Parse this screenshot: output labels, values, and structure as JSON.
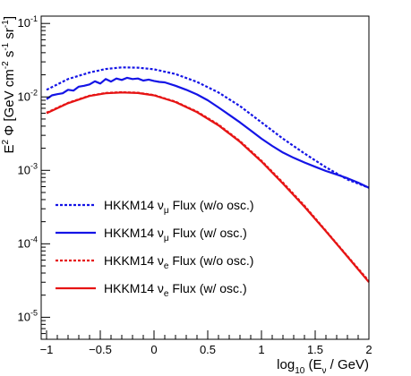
{
  "chart_data": {
    "type": "line",
    "title": "",
    "xlabel": {
      "main": "log",
      "sub": "10",
      "arg_open": " (E",
      "arg_sub": "ν",
      "arg_close": " / GeV)"
    },
    "ylabel": {
      "a": "E",
      "sup1": "2",
      "b": " Φ [GeV cm",
      "sup2": "-2",
      "c": " s",
      "sup3": "-1",
      "d": " sr",
      "sup4": "-1",
      "e": "]"
    },
    "xlim": [
      -1.05,
      2.0
    ],
    "ylim_log10": [
      -5.3,
      -0.9
    ],
    "y_log_scale": true,
    "grid": false,
    "legend_position": "bottom-left",
    "x_ticks": [
      {
        "value": -1,
        "label": "−1"
      },
      {
        "value": -0.5,
        "label": "−0.5"
      },
      {
        "value": 0,
        "label": "0"
      },
      {
        "value": 0.5,
        "label": "0.5"
      },
      {
        "value": 1,
        "label": "1"
      },
      {
        "value": 1.5,
        "label": "1.5"
      },
      {
        "value": 2,
        "label": "2"
      }
    ],
    "y_ticks": [
      {
        "exp": -5,
        "base": "10",
        "sup": "-5"
      },
      {
        "exp": -4,
        "base": "10",
        "sup": "-4"
      },
      {
        "exp": -3,
        "base": "10",
        "sup": "-3"
      },
      {
        "exp": -2,
        "base": "10",
        "sup": "-2"
      },
      {
        "exp": -1,
        "base": "10",
        "sup": "-1"
      }
    ],
    "series": [
      {
        "name": {
          "pre": "HKKM14 ν",
          "sub": "μ",
          "post": " Flux (w/o osc.)"
        },
        "color": "#1414e6",
        "dash": true,
        "x": [
          -1.0,
          -0.8,
          -0.6,
          -0.45,
          -0.3,
          -0.15,
          0.0,
          0.2,
          0.4,
          0.6,
          0.8,
          1.0,
          1.2,
          1.4,
          1.6,
          1.8,
          2.0
        ],
        "y": [
          0.0125,
          0.0175,
          0.0215,
          0.024,
          0.0252,
          0.025,
          0.0238,
          0.0205,
          0.016,
          0.0115,
          0.0075,
          0.0045,
          0.0027,
          0.0017,
          0.0011,
          0.00075,
          0.00058
        ]
      },
      {
        "name": {
          "pre": "HKKM14 ν",
          "sub": "μ",
          "post": " Flux (w/ osc.)"
        },
        "color": "#1414e6",
        "dash": false,
        "x": [
          -1.0,
          -0.95,
          -0.9,
          -0.85,
          -0.8,
          -0.75,
          -0.7,
          -0.65,
          -0.6,
          -0.55,
          -0.5,
          -0.45,
          -0.4,
          -0.35,
          -0.3,
          -0.25,
          -0.2,
          -0.15,
          -0.1,
          -0.05,
          0.0,
          0.05,
          0.1,
          0.2,
          0.3,
          0.4,
          0.5,
          0.6,
          0.7,
          0.8,
          0.9,
          1.0,
          1.1,
          1.2,
          1.3,
          1.4,
          1.5,
          1.6,
          1.7,
          1.8,
          1.9,
          2.0
        ],
        "y": [
          0.0093,
          0.0105,
          0.0109,
          0.0112,
          0.0125,
          0.0122,
          0.0138,
          0.0142,
          0.0148,
          0.0163,
          0.0152,
          0.0175,
          0.0162,
          0.0178,
          0.017,
          0.0182,
          0.0175,
          0.0178,
          0.0167,
          0.0172,
          0.0165,
          0.016,
          0.0158,
          0.0142,
          0.0125,
          0.0108,
          0.009,
          0.0072,
          0.0057,
          0.0045,
          0.0035,
          0.0027,
          0.00215,
          0.00175,
          0.00148,
          0.00128,
          0.00112,
          0.00098,
          0.00088,
          0.00078,
          0.00068,
          0.00058
        ]
      },
      {
        "name": {
          "pre": "HKKM14 ν",
          "sub": "e",
          "post": " Flux (w/o osc.)"
        },
        "color": "#e61414",
        "dash": true,
        "x": [
          -1.0,
          -0.8,
          -0.6,
          -0.45,
          -0.3,
          -0.15,
          0.0,
          0.2,
          0.4,
          0.6,
          0.8,
          1.0,
          1.2,
          1.4,
          1.6,
          1.8,
          2.0
        ],
        "y": [
          0.0061,
          0.0083,
          0.0104,
          0.0113,
          0.0116,
          0.0114,
          0.0106,
          0.0086,
          0.0063,
          0.0042,
          0.0025,
          0.00135,
          0.00068,
          0.00033,
          0.00015,
          6.8e-05,
          3.1e-05
        ]
      },
      {
        "name": {
          "pre": "HKKM14 ν",
          "sub": "e",
          "post": " Flux (w/ osc.)"
        },
        "color": "#e61414",
        "dash": false,
        "x": [
          -1.0,
          -0.8,
          -0.6,
          -0.45,
          -0.3,
          -0.15,
          0.0,
          0.2,
          0.4,
          0.6,
          0.8,
          1.0,
          1.2,
          1.4,
          1.6,
          1.8,
          2.0
        ],
        "y": [
          0.006,
          0.0082,
          0.0103,
          0.0112,
          0.0115,
          0.0113,
          0.0105,
          0.0085,
          0.0062,
          0.0041,
          0.00245,
          0.00132,
          0.00066,
          0.00032,
          0.000148,
          6.7e-05,
          3e-05
        ]
      }
    ]
  }
}
